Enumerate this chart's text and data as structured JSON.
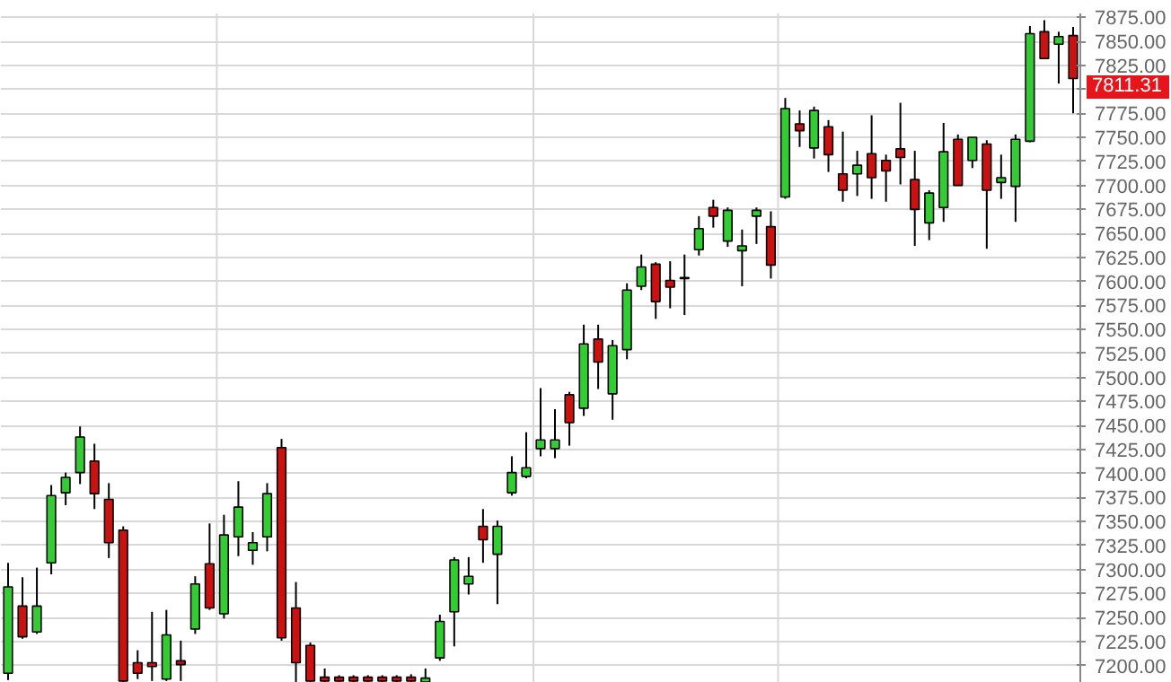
{
  "chart_data": {
    "type": "candlestick",
    "categories": [
      null,
      null,
      null,
      null,
      null,
      null,
      null,
      null,
      null,
      null,
      null,
      null,
      null,
      null,
      null,
      null,
      null,
      null,
      null,
      null,
      null,
      null,
      null,
      null,
      null,
      null,
      null,
      null,
      null,
      null,
      null,
      null,
      null,
      null,
      null,
      null,
      null,
      null,
      null,
      null,
      null,
      null,
      null,
      null,
      null,
      null,
      null,
      null,
      null,
      null,
      null,
      null,
      null,
      null,
      null,
      null,
      null,
      null,
      null,
      null,
      null,
      null,
      null,
      null,
      null,
      null,
      null,
      null,
      null,
      null,
      null,
      null,
      null,
      null,
      null
    ],
    "ohlc": [
      [
        7192,
        7307,
        7185,
        7282
      ],
      [
        7262,
        7292,
        7228,
        7230
      ],
      [
        7235,
        7302,
        7233,
        7262
      ],
      [
        7307,
        7388,
        7295,
        7377
      ],
      [
        7380,
        7401,
        7367,
        7396
      ],
      [
        7401,
        7449,
        7389,
        7438
      ],
      [
        7413,
        7431,
        7363,
        7379
      ],
      [
        7373,
        7390,
        7312,
        7328
      ],
      [
        7341,
        7345,
        7183,
        7184
      ],
      [
        7203,
        7216,
        7186,
        7192
      ],
      [
        7203,
        7256,
        7184,
        7199
      ],
      [
        7186,
        7258,
        7184,
        7232
      ],
      [
        7205,
        7226,
        7184,
        7201
      ],
      [
        7238,
        7293,
        7233,
        7285
      ],
      [
        7306,
        7348,
        7258,
        7260
      ],
      [
        7254,
        7357,
        7249,
        7336
      ],
      [
        7334,
        7392,
        7314,
        7365
      ],
      [
        7320,
        7339,
        7305,
        7328
      ],
      [
        7334,
        7390,
        7319,
        7379
      ],
      [
        7427,
        7436,
        7226,
        7229
      ],
      [
        7260,
        7287,
        7183,
        7203
      ],
      [
        7221,
        7224,
        7183,
        7184
      ],
      [
        7188,
        7197,
        7183,
        7184
      ],
      [
        7188,
        7190,
        7183,
        7184
      ],
      [
        7188,
        7190,
        7183,
        7184
      ],
      [
        7188,
        7190,
        7183,
        7184
      ],
      [
        7188,
        7190,
        7183,
        7184
      ],
      [
        7188,
        7190,
        7183,
        7184
      ],
      [
        7188,
        7191,
        7183,
        7184
      ],
      [
        7183,
        7197,
        7183,
        7187
      ],
      [
        7208,
        7253,
        7205,
        7246
      ],
      [
        7256,
        7313,
        7220,
        7310
      ],
      [
        7285,
        7313,
        7274,
        7293
      ],
      [
        7345,
        7363,
        7307,
        7331
      ],
      [
        7316,
        7351,
        7264,
        7345
      ],
      [
        7380,
        7418,
        7377,
        7401
      ],
      [
        7397,
        7443,
        7395,
        7406
      ],
      [
        7426,
        7489,
        7418,
        7435
      ],
      [
        7426,
        7467,
        7416,
        7435
      ],
      [
        7482,
        7485,
        7429,
        7453
      ],
      [
        7468,
        7555,
        7460,
        7535
      ],
      [
        7540,
        7555,
        7488,
        7516
      ],
      [
        7483,
        7539,
        7456,
        7533
      ],
      [
        7529,
        7598,
        7519,
        7591
      ],
      [
        7595,
        7628,
        7591,
        7615
      ],
      [
        7618,
        7620,
        7561,
        7579
      ],
      [
        7601,
        7621,
        7572,
        7594
      ],
      [
        7603,
        7628,
        7565,
        7604
      ],
      [
        7633,
        7668,
        7627,
        7655
      ],
      [
        7677,
        7685,
        7656,
        7668
      ],
      [
        7642,
        7677,
        7636,
        7674
      ],
      [
        7632,
        7654,
        7595,
        7637
      ],
      [
        7668,
        7677,
        7639,
        7674
      ],
      [
        7657,
        7673,
        7603,
        7617
      ],
      [
        7688,
        7791,
        7686,
        7780
      ],
      [
        7764,
        7778,
        7740,
        7757
      ],
      [
        7739,
        7782,
        7728,
        7778
      ],
      [
        7761,
        7768,
        7714,
        7732
      ],
      [
        7712,
        7756,
        7683,
        7695
      ],
      [
        7712,
        7736,
        7689,
        7721
      ],
      [
        7733,
        7773,
        7686,
        7708
      ],
      [
        7726,
        7732,
        7683,
        7715
      ],
      [
        7738,
        7786,
        7701,
        7729
      ],
      [
        7706,
        7736,
        7637,
        7675
      ],
      [
        7661,
        7695,
        7643,
        7692
      ],
      [
        7677,
        7765,
        7662,
        7735
      ],
      [
        7748,
        7753,
        7700,
        7700
      ],
      [
        7726,
        7750,
        7718,
        7750
      ],
      [
        7743,
        7747,
        7634,
        7695
      ],
      [
        7703,
        7732,
        7686,
        7708
      ],
      [
        7699,
        7753,
        7662,
        7748
      ],
      [
        7746,
        7866,
        7745,
        7858
      ],
      [
        7860,
        7872,
        7832,
        7832
      ],
      [
        7847,
        7860,
        7806,
        7855
      ],
      [
        7856,
        7865,
        7775,
        7811.31
      ]
    ],
    "colors": [
      "#33cc33",
      "#cc1111",
      "#33cc33",
      "#33cc33",
      "#33cc33",
      "#33cc33",
      "#cc1111",
      "#cc1111",
      "#cc1111",
      "#cc1111",
      "#cc1111",
      "#33cc33",
      "#cc1111",
      "#33cc33",
      "#cc1111",
      "#33cc33",
      "#33cc33",
      "#33cc33",
      "#33cc33",
      "#cc1111",
      "#cc1111",
      "#cc1111",
      "#cc1111",
      "#cc1111",
      "#cc1111",
      "#cc1111",
      "#cc1111",
      "#cc1111",
      "#cc1111",
      "#33cc33",
      "#33cc33",
      "#33cc33",
      "#33cc33",
      "#cc1111",
      "#33cc33",
      "#33cc33",
      "#33cc33",
      "#33cc33",
      "#33cc33",
      "#cc1111",
      "#33cc33",
      "#cc1111",
      "#33cc33",
      "#33cc33",
      "#33cc33",
      "#cc1111",
      "#cc1111",
      "#33cc33",
      "#33cc33",
      "#cc1111",
      "#33cc33",
      "#33cc33",
      "#33cc33",
      "#cc1111",
      "#33cc33",
      "#cc1111",
      "#33cc33",
      "#cc1111",
      "#cc1111",
      "#33cc33",
      "#cc1111",
      "#cc1111",
      "#cc1111",
      "#cc1111",
      "#33cc33",
      "#33cc33",
      "#cc1111",
      "#33cc33",
      "#cc1111",
      "#33cc33",
      "#33cc33",
      "#33cc33",
      "#cc1111",
      "#33cc33",
      "#cc1111"
    ],
    "ylim": [
      7182,
      7879
    ],
    "yticks": [
      {
        "value": 7200,
        "label": "7200.00"
      },
      {
        "value": 7225,
        "label": "7225.00"
      },
      {
        "value": 7250,
        "label": "7250.00"
      },
      {
        "value": 7275,
        "label": "7275.00"
      },
      {
        "value": 7300,
        "label": "7300.00"
      },
      {
        "value": 7325,
        "label": "7325.00"
      },
      {
        "value": 7350,
        "label": "7350.00"
      },
      {
        "value": 7375,
        "label": "7375.00"
      },
      {
        "value": 7400,
        "label": "7400.00"
      },
      {
        "value": 7425,
        "label": "7425.00"
      },
      {
        "value": 7450,
        "label": "7450.00"
      },
      {
        "value": 7475,
        "label": "7475.00"
      },
      {
        "value": 7500,
        "label": "7500.00"
      },
      {
        "value": 7525,
        "label": "7525.00"
      },
      {
        "value": 7550,
        "label": "7550.00"
      },
      {
        "value": 7575,
        "label": "7575.00"
      },
      {
        "value": 7600,
        "label": "7600.00"
      },
      {
        "value": 7625,
        "label": "7625.00"
      },
      {
        "value": 7650,
        "label": "7650.00"
      },
      {
        "value": 7675,
        "label": "7675.00"
      },
      {
        "value": 7700,
        "label": "7700.00"
      },
      {
        "value": 7725,
        "label": "7725.00"
      },
      {
        "value": 7750,
        "label": "7750.00"
      },
      {
        "value": 7775,
        "label": "7775.00"
      },
      {
        "value": 7800,
        "label": null
      },
      {
        "value": 7825,
        "label": "7825.00"
      },
      {
        "value": 7850,
        "label": "7850.00"
      },
      {
        "value": 7875,
        "label": "7875.00"
      }
    ],
    "grid": "y",
    "annotations": [
      "7811.31"
    ]
  }
}
